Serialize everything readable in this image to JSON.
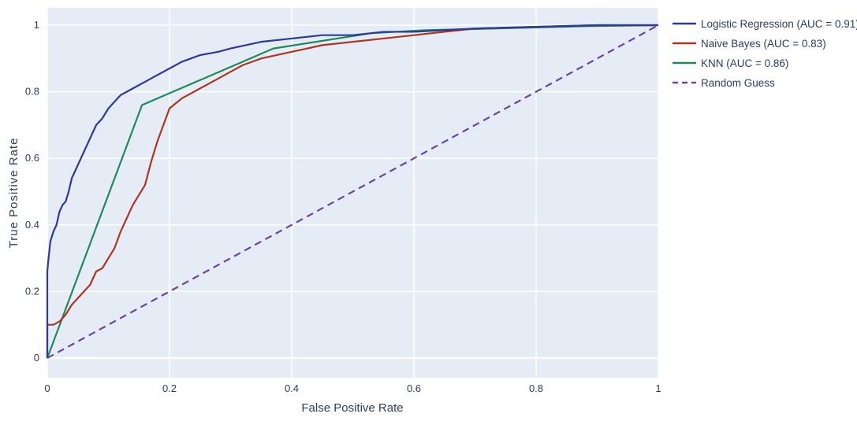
{
  "chart_data": {
    "type": "line",
    "title": "",
    "xlabel": "False Positive Rate",
    "ylabel": "True Positive Rate",
    "xlim": [
      0,
      1
    ],
    "ylim": [
      0,
      1
    ],
    "x_ticks": [
      "0",
      "0.2",
      "0.4",
      "0.6",
      "0.8",
      "1"
    ],
    "y_ticks": [
      "0",
      "0.2",
      "0.4",
      "0.6",
      "0.8",
      "1"
    ],
    "grid": true,
    "legend_position": "top-right outside",
    "background_color": "#e5ecf6",
    "series": [
      {
        "name": "Logistic Regression (AUC = 0.91)",
        "color": "#2b3a9b",
        "dash": "solid",
        "x": [
          0,
          0,
          0.002,
          0.005,
          0.01,
          0.015,
          0.02,
          0.025,
          0.03,
          0.035,
          0.04,
          0.045,
          0.05,
          0.055,
          0.06,
          0.065,
          0.07,
          0.075,
          0.08,
          0.09,
          0.1,
          0.11,
          0.12,
          0.13,
          0.14,
          0.15,
          0.16,
          0.17,
          0.18,
          0.2,
          0.22,
          0.25,
          0.28,
          0.3,
          0.35,
          0.4,
          0.45,
          0.5,
          0.55,
          0.6,
          0.7,
          0.8,
          0.9,
          1.0
        ],
        "y": [
          0,
          0.26,
          0.3,
          0.35,
          0.38,
          0.4,
          0.44,
          0.46,
          0.47,
          0.5,
          0.54,
          0.56,
          0.58,
          0.6,
          0.62,
          0.64,
          0.66,
          0.68,
          0.7,
          0.72,
          0.75,
          0.77,
          0.79,
          0.8,
          0.81,
          0.82,
          0.83,
          0.84,
          0.85,
          0.87,
          0.89,
          0.91,
          0.92,
          0.93,
          0.95,
          0.96,
          0.97,
          0.97,
          0.98,
          0.98,
          0.99,
          0.995,
          1.0,
          1.0
        ]
      },
      {
        "name": "Naive Bayes (AUC = 0.83)",
        "color": "#b0341f",
        "dash": "solid",
        "x": [
          0,
          0,
          0.01,
          0.02,
          0.03,
          0.04,
          0.05,
          0.06,
          0.07,
          0.08,
          0.09,
          0.1,
          0.11,
          0.12,
          0.13,
          0.14,
          0.15,
          0.16,
          0.17,
          0.18,
          0.19,
          0.2,
          0.22,
          0.25,
          0.28,
          0.3,
          0.32,
          0.35,
          0.4,
          0.45,
          0.5,
          0.55,
          0.6,
          0.65,
          0.7,
          0.8,
          0.9,
          1.0
        ],
        "y": [
          0,
          0.1,
          0.1,
          0.11,
          0.13,
          0.16,
          0.18,
          0.2,
          0.22,
          0.26,
          0.27,
          0.3,
          0.33,
          0.38,
          0.42,
          0.46,
          0.49,
          0.52,
          0.59,
          0.65,
          0.7,
          0.75,
          0.78,
          0.81,
          0.84,
          0.86,
          0.88,
          0.9,
          0.92,
          0.94,
          0.95,
          0.96,
          0.97,
          0.98,
          0.99,
          0.995,
          1.0,
          1.0
        ]
      },
      {
        "name": "KNN (AUC = 0.86)",
        "color": "#1d8a5a",
        "dash": "solid",
        "x": [
          0,
          0.155,
          0.37,
          0.53,
          0.62,
          0.8,
          0.88,
          1.0
        ],
        "y": [
          0,
          0.76,
          0.93,
          0.976,
          0.985,
          0.993,
          0.997,
          1.0
        ]
      },
      {
        "name": "Random Guess",
        "color": "#6a44a0",
        "dash": "dash",
        "x": [
          0,
          1
        ],
        "y": [
          0,
          1
        ]
      }
    ]
  }
}
